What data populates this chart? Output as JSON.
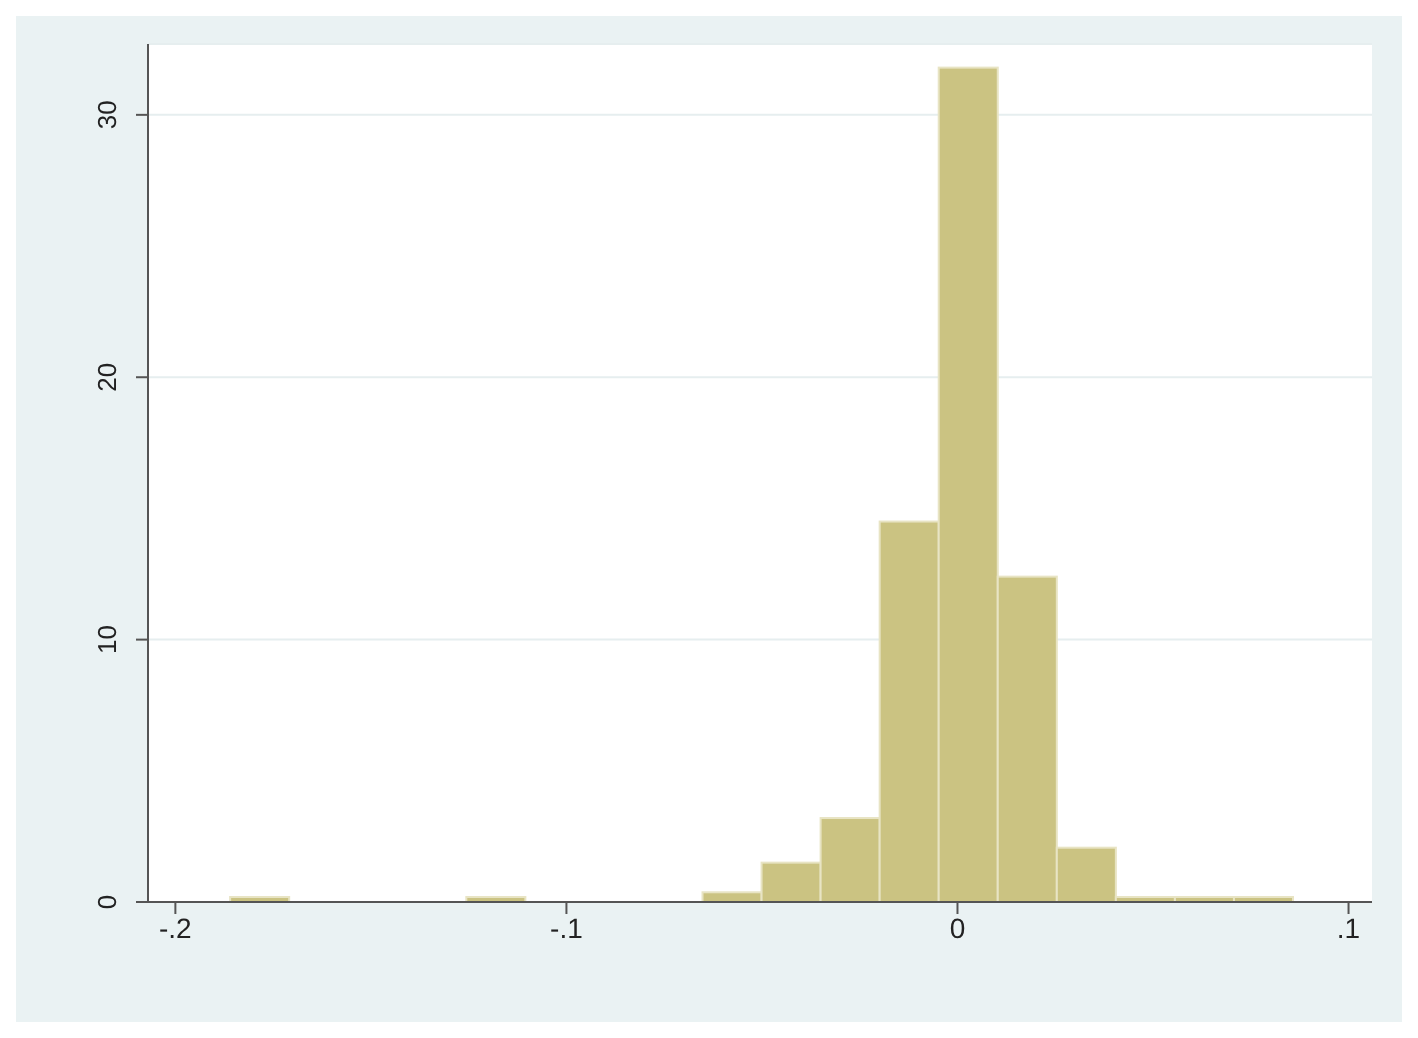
{
  "chart_data": {
    "type": "histogram",
    "bins": [
      -0.186,
      -0.1709,
      -0.1558,
      -0.1407,
      -0.1256,
      -0.1105,
      -0.0954,
      -0.0803,
      -0.0652,
      -0.0501,
      -0.035,
      -0.0199,
      -0.0048,
      0.0103,
      0.0254,
      0.0405,
      0.0556,
      0.0707,
      0.0858
    ],
    "values": [
      0.19,
      0,
      0,
      0,
      0.19,
      0,
      0,
      0,
      0.37,
      1.5,
      3.2,
      14.5,
      31.8,
      12.4,
      2.07,
      0.19,
      0.19,
      0.19
    ],
    "color": "#cbc382",
    "xlim": [
      -0.207,
      0.106
    ],
    "xticks": [
      {
        "value": -0.2,
        "label": "-.2"
      },
      {
        "value": -0.1,
        "label": "-.1"
      },
      0,
      {
        "value": 0.1,
        "label": ".1"
      }
    ],
    "ylim": [
      0,
      32.7
    ],
    "yticks": [
      0,
      10,
      20,
      30
    ],
    "grid": "y"
  }
}
